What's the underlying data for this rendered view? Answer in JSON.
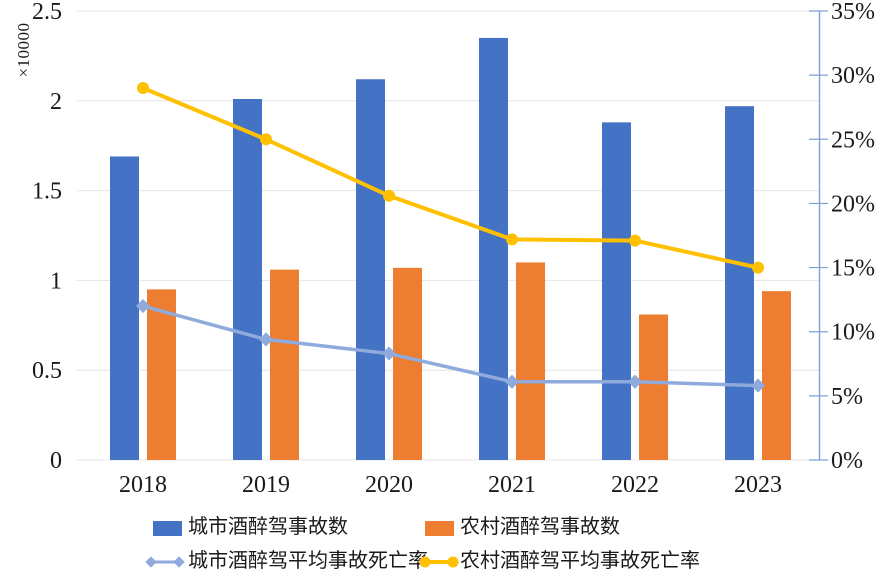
{
  "chart_data": {
    "type": "combo-bar-line",
    "categories": [
      "2018",
      "2019",
      "2020",
      "2021",
      "2022",
      "2023"
    ],
    "series": [
      {
        "name": "城市酒醉驾事故数",
        "type": "bar",
        "axis": "left",
        "color": "#4472C4",
        "values": [
          1.69,
          2.01,
          2.12,
          2.35,
          1.88,
          1.97
        ]
      },
      {
        "name": "农村酒醉驾事故数",
        "type": "bar",
        "axis": "left",
        "color": "#ED7D31",
        "values": [
          0.95,
          1.06,
          1.07,
          1.1,
          0.81,
          0.94
        ]
      },
      {
        "name": "城市酒醉驾平均事故死亡率",
        "type": "line",
        "marker": "diamond",
        "axis": "right",
        "unit": "%",
        "color": "#8FAADC",
        "values": [
          12.0,
          9.4,
          8.3,
          6.1,
          6.1,
          5.8
        ]
      },
      {
        "name": "农村酒醉驾平均事故死亡率",
        "type": "line",
        "marker": "circle",
        "axis": "right",
        "unit": "%",
        "color": "#FFC000",
        "values": [
          29.0,
          25.0,
          20.6,
          17.2,
          17.1,
          15.0
        ]
      }
    ],
    "left_axis": {
      "unit_label": "×10000",
      "min": 0,
      "max": 2.5,
      "ticks": [
        "0",
        "0.5",
        "1",
        "1.5",
        "2",
        "2.5"
      ]
    },
    "right_axis": {
      "min": 0,
      "max": 35,
      "ticks": [
        "0%",
        "5%",
        "10%",
        "15%",
        "20%",
        "25%",
        "30%",
        "35%"
      ],
      "axis_color": "#7F9FD8"
    },
    "grid": true,
    "grid_color": "#E4E4E4",
    "text_color": "#1A1A1A",
    "legend_position": "bottom"
  }
}
